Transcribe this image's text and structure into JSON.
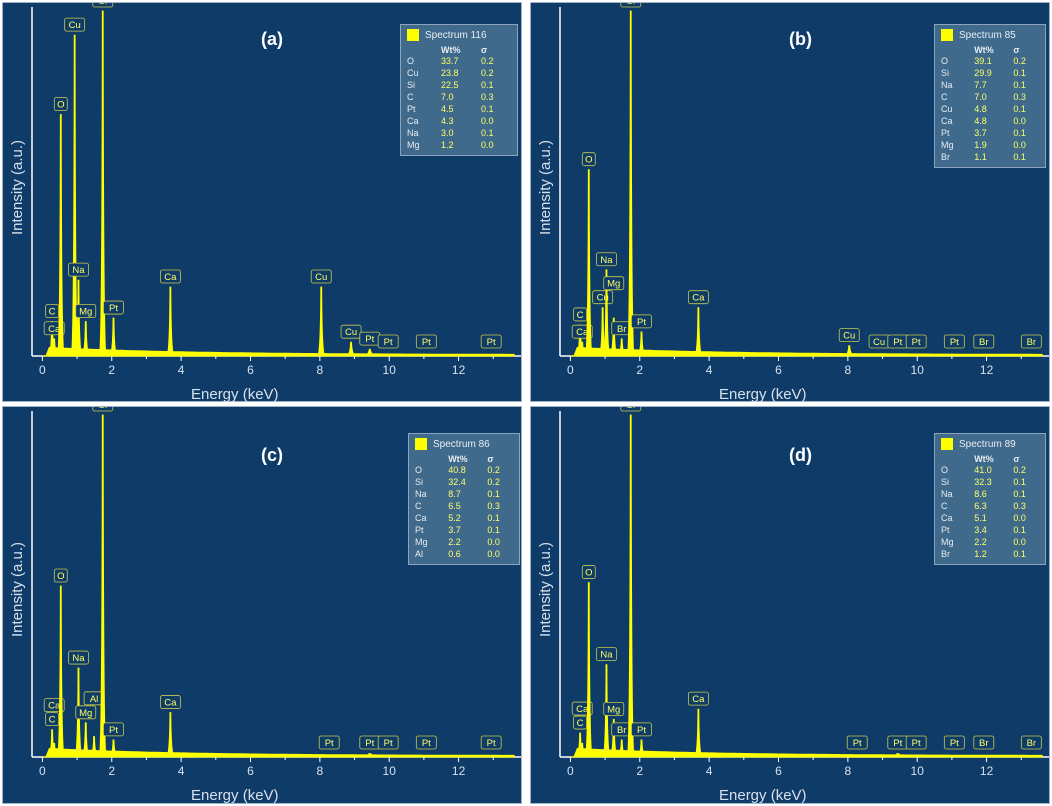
{
  "chart_data": [
    {
      "type": "line",
      "panel_label": "(a)",
      "xlabel": "Energy (keV)",
      "ylabel": "Intensity (a.u.)",
      "xlim": [
        -0.3,
        13.8
      ],
      "xticks": [
        0,
        2,
        4,
        6,
        8,
        10,
        12
      ],
      "legend_title": "Spectrum 116",
      "table_headers": [
        "Wt%",
        "σ"
      ],
      "table": [
        [
          "O",
          "33.7",
          "0.2"
        ],
        [
          "Cu",
          "23.8",
          "0.2"
        ],
        [
          "Si",
          "22.5",
          "0.1"
        ],
        [
          "C",
          "7.0",
          "0.3"
        ],
        [
          "Pt",
          "4.5",
          "0.1"
        ],
        [
          "Ca",
          "4.3",
          "0.0"
        ],
        [
          "Na",
          "3.0",
          "0.1"
        ],
        [
          "Mg",
          "1.2",
          "0.0"
        ]
      ],
      "peaks": [
        {
          "label": "C",
          "x": 0.28,
          "h": 0.1
        },
        {
          "label": "Ca",
          "x": 0.34,
          "h": 0.05
        },
        {
          "label": "O",
          "x": 0.53,
          "h": 0.7
        },
        {
          "label": "Cu",
          "x": 0.93,
          "h": 0.93
        },
        {
          "label": "Na",
          "x": 1.04,
          "h": 0.22
        },
        {
          "label": "Mg",
          "x": 1.25,
          "h": 0.1
        },
        {
          "label": "Si",
          "x": 1.74,
          "h": 1.0
        },
        {
          "label": "Pt",
          "x": 2.05,
          "h": 0.11
        },
        {
          "label": "Ca",
          "x": 3.69,
          "h": 0.2
        },
        {
          "label": "Cu",
          "x": 8.04,
          "h": 0.2
        },
        {
          "label": "Cu",
          "x": 8.9,
          "h": 0.04
        },
        {
          "label": "Pt",
          "x": 9.44,
          "h": 0.02
        },
        {
          "label": "Pt",
          "x": 9.97,
          "h": 0.0
        },
        {
          "label": "Pt",
          "x": 11.07,
          "h": 0.0
        },
        {
          "label": "Pt",
          "x": 12.94,
          "h": 0.0
        }
      ]
    },
    {
      "type": "line",
      "panel_label": "(b)",
      "xlabel": "Energy (keV)",
      "ylabel": "Intensity (a.u.)",
      "xlim": [
        -0.3,
        13.8
      ],
      "xticks": [
        0,
        2,
        4,
        6,
        8,
        10,
        12
      ],
      "legend_title": "Spectrum 85",
      "table_headers": [
        "Wt%",
        "σ"
      ],
      "table": [
        [
          "O",
          "39.1",
          "0.2"
        ],
        [
          "Si",
          "29.9",
          "0.1"
        ],
        [
          "Na",
          "7.7",
          "0.1"
        ],
        [
          "C",
          "7.0",
          "0.3"
        ],
        [
          "Cu",
          "4.8",
          "0.1"
        ],
        [
          "Ca",
          "4.8",
          "0.0"
        ],
        [
          "Pt",
          "3.7",
          "0.1"
        ],
        [
          "Mg",
          "1.9",
          "0.0"
        ],
        [
          "Br",
          "1.1",
          "0.1"
        ]
      ],
      "peaks": [
        {
          "label": "C",
          "x": 0.28,
          "h": 0.09
        },
        {
          "label": "Ca",
          "x": 0.34,
          "h": 0.04
        },
        {
          "label": "O",
          "x": 0.53,
          "h": 0.54
        },
        {
          "label": "Cu",
          "x": 0.93,
          "h": 0.14
        },
        {
          "label": "Na",
          "x": 1.04,
          "h": 0.25
        },
        {
          "label": "Mg",
          "x": 1.25,
          "h": 0.11
        },
        {
          "label": "Br",
          "x": 1.48,
          "h": 0.05
        },
        {
          "label": "Si",
          "x": 1.74,
          "h": 1.0
        },
        {
          "label": "Pt",
          "x": 2.05,
          "h": 0.07
        },
        {
          "label": "Ca",
          "x": 3.69,
          "h": 0.14
        },
        {
          "label": "Cu",
          "x": 8.04,
          "h": 0.03
        },
        {
          "label": "Cu",
          "x": 8.9,
          "h": 0.0
        },
        {
          "label": "Pt",
          "x": 9.44,
          "h": 0.0
        },
        {
          "label": "Pt",
          "x": 9.97,
          "h": 0.0
        },
        {
          "label": "Pt",
          "x": 11.07,
          "h": 0.0
        },
        {
          "label": "Br",
          "x": 11.92,
          "h": 0.0
        },
        {
          "label": "Br",
          "x": 13.29,
          "h": 0.0
        }
      ]
    },
    {
      "type": "line",
      "panel_label": "(c)",
      "xlabel": "Energy (keV)",
      "ylabel": "Intensity (a.u.)",
      "xlim": [
        -0.3,
        13.8
      ],
      "xticks": [
        0,
        2,
        4,
        6,
        8,
        10,
        12
      ],
      "legend_title": "Spectrum 86",
      "table_headers": [
        "Wt%",
        "σ"
      ],
      "table": [
        [
          "O",
          "40.8",
          "0.2"
        ],
        [
          "Si",
          "32.4",
          "0.2"
        ],
        [
          "Na",
          "8.7",
          "0.1"
        ],
        [
          "C",
          "6.5",
          "0.3"
        ],
        [
          "Ca",
          "5.2",
          "0.1"
        ],
        [
          "Pt",
          "3.7",
          "0.1"
        ],
        [
          "Mg",
          "2.2",
          "0.0"
        ],
        [
          "Al",
          "0.6",
          "0.0"
        ]
      ],
      "peaks": [
        {
          "label": "C",
          "x": 0.28,
          "h": 0.08
        },
        {
          "label": "Ca",
          "x": 0.34,
          "h": 0.04
        },
        {
          "label": "O",
          "x": 0.53,
          "h": 0.5
        },
        {
          "label": "Na",
          "x": 1.04,
          "h": 0.26
        },
        {
          "label": "Mg",
          "x": 1.25,
          "h": 0.1
        },
        {
          "label": "Al",
          "x": 1.49,
          "h": 0.06
        },
        {
          "label": "Si",
          "x": 1.74,
          "h": 1.0
        },
        {
          "label": "Pt",
          "x": 2.05,
          "h": 0.05
        },
        {
          "label": "Ca",
          "x": 3.69,
          "h": 0.13
        },
        {
          "label": "Pt",
          "x": 8.27,
          "h": 0.0
        },
        {
          "label": "Pt",
          "x": 9.44,
          "h": 0.01
        },
        {
          "label": "Pt",
          "x": 9.97,
          "h": 0.0
        },
        {
          "label": "Pt",
          "x": 11.07,
          "h": 0.0
        },
        {
          "label": "Pt",
          "x": 12.94,
          "h": 0.0
        }
      ]
    },
    {
      "type": "line",
      "panel_label": "(d)",
      "xlabel": "Energy (keV)",
      "ylabel": "Intensity (a.u.)",
      "xlim": [
        -0.3,
        13.8
      ],
      "xticks": [
        0,
        2,
        4,
        6,
        8,
        10,
        12
      ],
      "legend_title": "Spectrum 89",
      "table_headers": [
        "Wt%",
        "σ"
      ],
      "table": [
        [
          "O",
          "41.0",
          "0.2"
        ],
        [
          "Si",
          "32.3",
          "0.1"
        ],
        [
          "Na",
          "8.6",
          "0.1"
        ],
        [
          "C",
          "6.3",
          "0.3"
        ],
        [
          "Ca",
          "5.1",
          "0.0"
        ],
        [
          "Pt",
          "3.4",
          "0.1"
        ],
        [
          "Mg",
          "2.2",
          "0.0"
        ],
        [
          "Br",
          "1.2",
          "0.1"
        ]
      ],
      "peaks": [
        {
          "label": "C",
          "x": 0.28,
          "h": 0.07
        },
        {
          "label": "Ca",
          "x": 0.34,
          "h": 0.04
        },
        {
          "label": "O",
          "x": 0.53,
          "h": 0.51
        },
        {
          "label": "Na",
          "x": 1.04,
          "h": 0.27
        },
        {
          "label": "Mg",
          "x": 1.25,
          "h": 0.11
        },
        {
          "label": "Br",
          "x": 1.48,
          "h": 0.05
        },
        {
          "label": "Si",
          "x": 1.74,
          "h": 1.0
        },
        {
          "label": "Pt",
          "x": 2.05,
          "h": 0.05
        },
        {
          "label": "Ca",
          "x": 3.69,
          "h": 0.14
        },
        {
          "label": "Pt",
          "x": 8.27,
          "h": 0.0
        },
        {
          "label": "Pt",
          "x": 9.44,
          "h": 0.01
        },
        {
          "label": "Pt",
          "x": 9.97,
          "h": 0.0
        },
        {
          "label": "Pt",
          "x": 11.07,
          "h": 0.0
        },
        {
          "label": "Br",
          "x": 11.92,
          "h": 0.0
        },
        {
          "label": "Br",
          "x": 13.29,
          "h": 0.0
        }
      ]
    }
  ],
  "colors": {
    "background": "#0f3b68",
    "trace": "#ffff00",
    "axis": "#ffffff",
    "legend_bg": "#3f6a8c",
    "panel_border": "#9fb3c8"
  }
}
